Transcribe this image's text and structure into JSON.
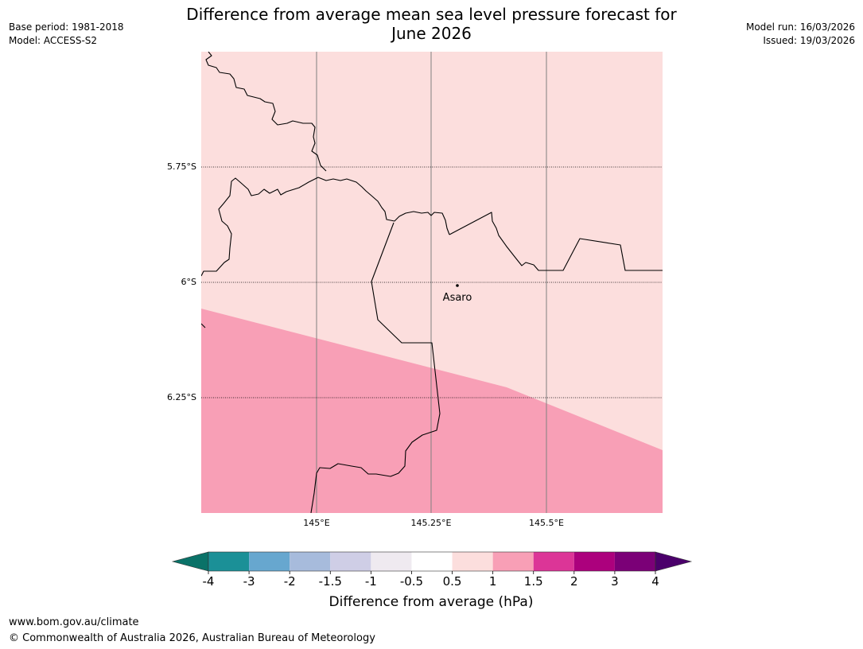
{
  "header": {
    "base_period": "Base period: 1981-2018",
    "model": "Model: ACCESS-S2",
    "title_line1": "Difference from average mean sea level pressure forecast for",
    "title_line2": "June 2026",
    "model_run": "Model run: 16/03/2026",
    "issued": "Issued: 19/03/2026"
  },
  "map": {
    "lat_labels": [
      "5.75°S",
      "6°S",
      "6.25°S"
    ],
    "lon_labels": [
      "145°E",
      "145.25°E",
      "145.5°E"
    ],
    "place": "Asaro",
    "zones": [
      {
        "name": "0.5 to 1 hPa",
        "color": "#fcdedd"
      },
      {
        "name": "1 to 1.5 hPa",
        "color": "#f89fb6"
      }
    ]
  },
  "legend": {
    "ticks": [
      "-4",
      "-3",
      "-2",
      "-1.5",
      "-1",
      "-0.5",
      "0.5",
      "1",
      "1.5",
      "2",
      "3",
      "4"
    ],
    "colors": [
      "#0a7268",
      "#1b9097",
      "#67a7cf",
      "#a7bbdc",
      "#cfcee6",
      "#efeaf0",
      "#ffffff",
      "#fcdedd",
      "#f89fb6",
      "#dc3597",
      "#ac017d",
      "#7b0077",
      "#4b006b"
    ],
    "label": "Difference from average (hPa)"
  },
  "footer": {
    "url": "www.bom.gov.au/climate",
    "copyright": "© Commonwealth of Australia 2026, Australian Bureau of Meteorology"
  }
}
